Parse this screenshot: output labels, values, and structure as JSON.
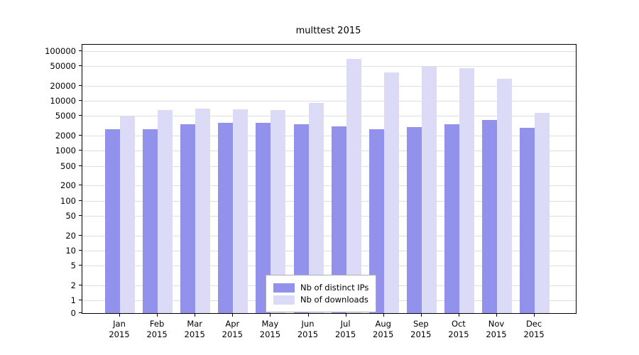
{
  "chart_data": {
    "type": "bar",
    "title": "multtest 2015",
    "xlabel": "",
    "ylabel": "",
    "y_scale": "log",
    "grid": "horizontal",
    "legend_position": "bottom-center",
    "categories": [
      "Jan 2015",
      "Feb 2015",
      "Mar 2015",
      "Apr 2015",
      "May 2015",
      "Jun 2015",
      "Jul 2015",
      "Aug 2015",
      "Sep 2015",
      "Oct 2015",
      "Nov 2015",
      "Dec 2015"
    ],
    "y_ticks": [
      0,
      1,
      2,
      5,
      10,
      20,
      50,
      100,
      200,
      500,
      1000,
      2000,
      5000,
      10000,
      20000,
      50000,
      100000
    ],
    "series": [
      {
        "name": "Nb of distinct IPs",
        "color": "#9292ec",
        "values": [
          2700,
          2700,
          3400,
          3600,
          3600,
          3400,
          3100,
          2750,
          3000,
          3400,
          4100,
          2900
        ]
      },
      {
        "name": "Nb of downloads",
        "color": "#dbdbf8",
        "values": [
          5000,
          6500,
          7000,
          6800,
          6600,
          9000,
          70000,
          38000,
          48000,
          46000,
          28000,
          5800
        ]
      }
    ]
  }
}
